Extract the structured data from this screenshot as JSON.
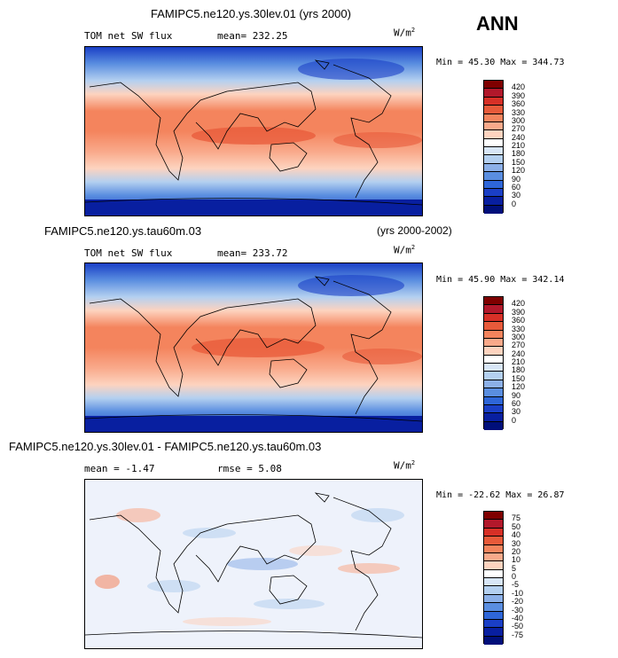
{
  "season": "ANN",
  "panels": [
    {
      "title": "FAMIPC5.ne120.ys.30lev.01 (yrs 2000)",
      "variable": "TOM net SW flux",
      "mean": "mean= 232.25",
      "units": "W/m",
      "units_exp": "2",
      "minmax": "Min =  45.30 Max = 344.73",
      "levels": [
        "420",
        "390",
        "360",
        "330",
        "300",
        "270",
        "240",
        "210",
        "180",
        "150",
        "120",
        "90",
        "60",
        "30",
        "0"
      ],
      "colors": [
        "#7f0000",
        "#b2182b",
        "#d73027",
        "#e85a3a",
        "#f4845d",
        "#f9a98a",
        "#fdd3bf",
        "#ffffff",
        "#d8e6f7",
        "#b4d0f0",
        "#8cb0e8",
        "#5a8ee0",
        "#2e66d8",
        "#1a3fc6",
        "#081fa0",
        "#000f7a"
      ]
    },
    {
      "title": "FAMIPC5.ne120.ys.tau60m.03",
      "years": "(yrs 2000-2002)",
      "variable": "TOM net SW flux",
      "mean": "mean= 233.72",
      "units": "W/m",
      "units_exp": "2",
      "minmax": "Min =  45.90 Max = 342.14",
      "levels": [
        "420",
        "390",
        "360",
        "330",
        "300",
        "270",
        "240",
        "210",
        "180",
        "150",
        "120",
        "90",
        "60",
        "30",
        "0"
      ],
      "colors": [
        "#7f0000",
        "#b2182b",
        "#d73027",
        "#e85a3a",
        "#f4845d",
        "#f9a98a",
        "#fdd3bf",
        "#ffffff",
        "#d8e6f7",
        "#b4d0f0",
        "#8cb0e8",
        "#5a8ee0",
        "#2e66d8",
        "#1a3fc6",
        "#081fa0",
        "#000f7a"
      ]
    },
    {
      "title": "FAMIPC5.ne120.ys.30lev.01 - FAMIPC5.ne120.ys.tau60m.03",
      "mean": "mean =   -1.47",
      "rmse": "rmse =    5.08",
      "units": "W/m",
      "units_exp": "2",
      "minmax": "Min = -22.62 Max =  26.87",
      "levels": [
        "75",
        "50",
        "40",
        "30",
        "20",
        "10",
        "5",
        "0",
        "-5",
        "-10",
        "-20",
        "-30",
        "-40",
        "-50",
        "-75"
      ],
      "colors": [
        "#7f0000",
        "#b2182b",
        "#d73027",
        "#e85a3a",
        "#f4845d",
        "#f9a98a",
        "#fdd3bf",
        "#ffffff",
        "#d8e6f7",
        "#b4d0f0",
        "#8cb0e8",
        "#5a8ee0",
        "#2e66d8",
        "#1a3fc6",
        "#081fa0",
        "#000f7a"
      ]
    }
  ]
}
